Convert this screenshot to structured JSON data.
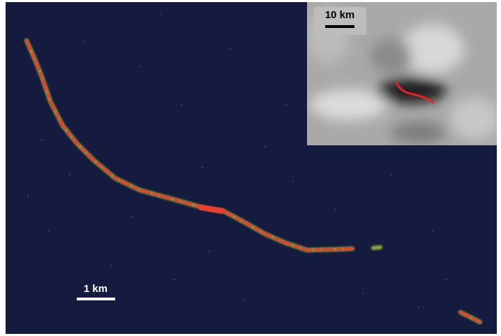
{
  "main_scale_bar": {
    "label": "1 km"
  },
  "inset": {
    "scale_bar": {
      "label": "10 km"
    }
  }
}
